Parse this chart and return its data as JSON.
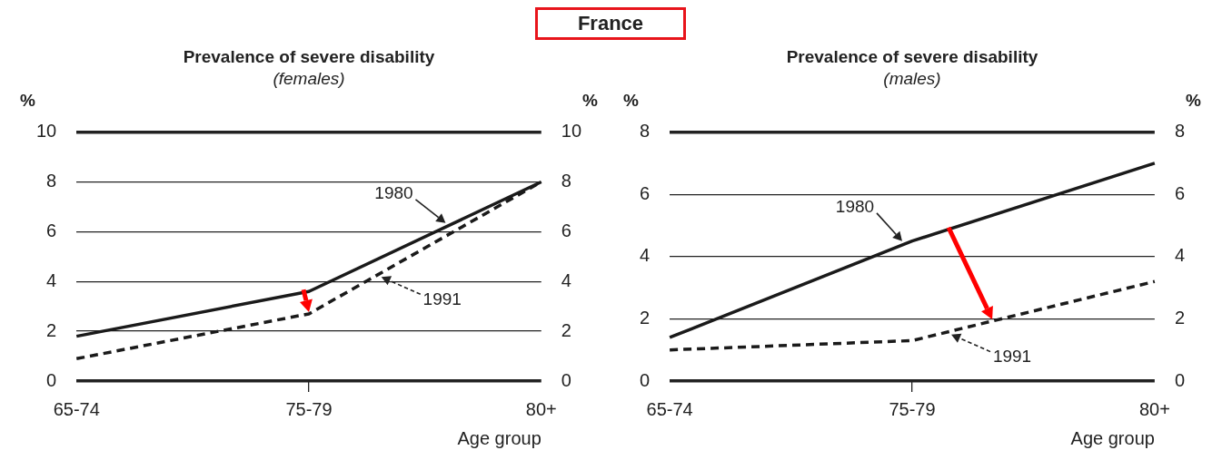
{
  "chart_data": [
    {
      "type": "line",
      "title": "Prevalence of severe disability",
      "subtitle": "(females)",
      "xlabel": "Age group",
      "ylabel": "%",
      "y2label": "%",
      "categories": [
        "65-74",
        "75-79",
        "80+"
      ],
      "series": [
        {
          "name": "1980",
          "color": "#1a1a1a",
          "values": [
            1.8,
            3.6,
            8.0
          ],
          "line_style": "solid"
        },
        {
          "name": "1991",
          "color": "#1a1a1a",
          "values": [
            0.9,
            2.7,
            8.0
          ],
          "line_style": "dashed"
        }
      ],
      "ylim": [
        0,
        10
      ],
      "yticks": [
        0,
        2,
        4,
        6,
        8,
        10
      ],
      "y2lim": [
        0,
        10
      ],
      "y2ticks": [
        0,
        2,
        4,
        6,
        8,
        10
      ],
      "grid": "y",
      "marker": "none",
      "annotations": [
        "France"
      ]
    },
    {
      "type": "line",
      "title": "Prevalence of severe disability",
      "subtitle": "(males)",
      "xlabel": "Age group",
      "ylabel": "%",
      "y2label": "%",
      "categories": [
        "65-74",
        "75-79",
        "80+"
      ],
      "series": [
        {
          "name": "1980",
          "color": "#1a1a1a",
          "values": [
            1.4,
            4.5,
            7.0
          ],
          "line_style": "solid"
        },
        {
          "name": "1991",
          "color": "#1a1a1a",
          "values": [
            1.0,
            1.3,
            3.2
          ],
          "line_style": "dashed"
        }
      ],
      "ylim": [
        0,
        8
      ],
      "yticks": [
        0,
        2,
        4,
        6,
        8
      ],
      "y2lim": [
        0,
        8
      ],
      "y2ticks": [
        0,
        2,
        4,
        6,
        8
      ],
      "grid": "y",
      "marker": "none"
    }
  ]
}
